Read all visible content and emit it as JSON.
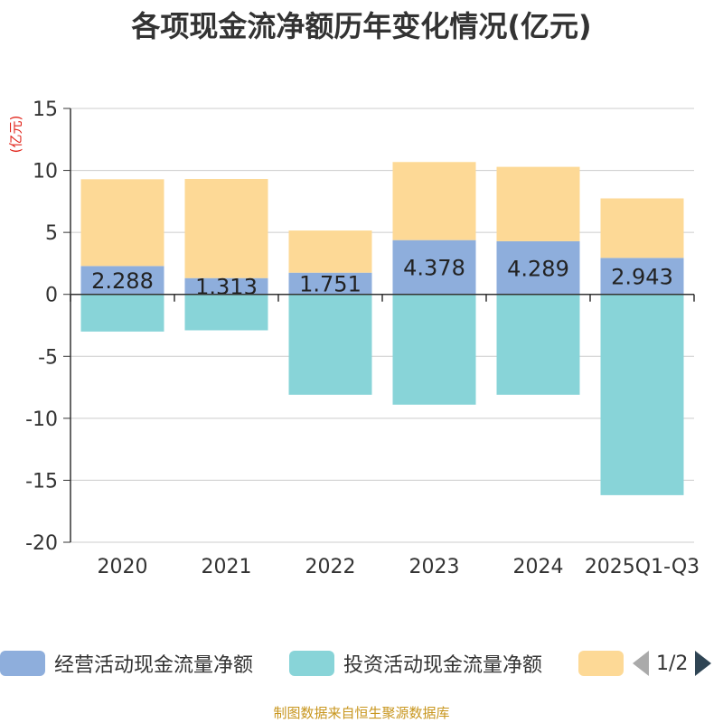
{
  "chart_data": {
    "type": "bar",
    "stacked": true,
    "title": "各项现金流净额历年变化情况(亿元)",
    "ylabel": "(亿元)",
    "xlabel": "",
    "categories": [
      "2020",
      "2021",
      "2022",
      "2023",
      "2024",
      "2025Q1-Q3"
    ],
    "ylim": [
      -20,
      15
    ],
    "yticks": [
      15,
      10,
      5,
      0,
      -5,
      -10,
      -15,
      -20
    ],
    "grid": true,
    "series": [
      {
        "name": "经营活动现金流量净额",
        "color": "#8eaedc",
        "values": [
          2.288,
          1.313,
          1.751,
          4.378,
          4.289,
          2.943
        ],
        "labels": [
          "2.288",
          "1.313",
          "1.751",
          "4.378",
          "4.289",
          "2.943"
        ]
      },
      {
        "name": "投资活动现金流量净额",
        "color": "#88d4d8",
        "values": [
          -3.0,
          -2.9,
          -8.1,
          -8.9,
          -8.1,
          -16.2
        ]
      },
      {
        "name": "",
        "color": "#fdd996",
        "values": [
          7.0,
          8.0,
          3.4,
          6.3,
          6.0,
          4.8
        ]
      }
    ]
  },
  "legend": {
    "items": [
      {
        "label": "经营活动现金流量净额",
        "color": "#8eaedc"
      },
      {
        "label": "投资活动现金流量净额",
        "color": "#88d4d8"
      },
      {
        "label": "",
        "color": "#fdd996"
      }
    ],
    "page": "1/2"
  },
  "source": "制图数据来自恒生聚源数据库"
}
